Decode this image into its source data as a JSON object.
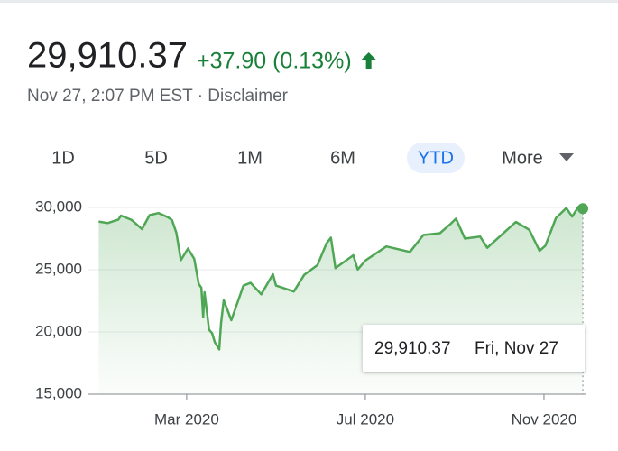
{
  "header": {
    "price": "29,910.37",
    "change": "+37.90 (0.13%)",
    "timestamp": "Nov 27, 2:07 PM EST",
    "separator": "·",
    "disclaimer": "Disclaimer"
  },
  "tabs": {
    "items": [
      "1D",
      "5D",
      "1M",
      "6M",
      "YTD",
      "More"
    ],
    "selected": 4
  },
  "tooltip": {
    "value": "29,910.37",
    "date": "Fri, Nov 27"
  },
  "chart_data": {
    "type": "area",
    "color": "#4fa756",
    "x": [
      0.03,
      0.23,
      0.47,
      0.53,
      0.77,
      1.0,
      1.17,
      1.37,
      1.57,
      1.67,
      1.77,
      1.87,
      2.03,
      2.17,
      2.27,
      2.33,
      2.37,
      2.4,
      2.5,
      2.57,
      2.63,
      2.73,
      2.77,
      2.83,
      3.0,
      3.17,
      3.27,
      3.43,
      3.67,
      3.93,
      4.0,
      4.4,
      4.63,
      4.93,
      5.13,
      5.23,
      5.33,
      5.73,
      5.83,
      6.0,
      6.47,
      6.73,
      7.0,
      7.3,
      7.67,
      7.9,
      8.03,
      8.23,
      8.57,
      8.73,
      9.37,
      9.67,
      9.9,
      10.03,
      10.27,
      10.5,
      10.63,
      10.77,
      10.8,
      10.87
    ],
    "values": [
      28869,
      28745,
      29030,
      29348,
      28990,
      28256,
      29379,
      29551,
      29232,
      28992,
      27961,
      25766,
      26703,
      25865,
      23851,
      23553,
      21200,
      23185,
      20189,
      19899,
      19174,
      18592,
      20705,
      22552,
      20943,
      22680,
      23719,
      23949,
      23019,
      24634,
      23724,
      23248,
      24576,
      25383,
      27111,
      27572,
      25128,
      26156,
      25016,
      25734,
      26870,
      26652,
      26428,
      27791,
      27930,
      28654,
      29100,
      27500,
      27657,
      26763,
      28837,
      28211,
      26519,
      26925,
      29158,
      29950,
      29263,
      30046,
      29872,
      29910
    ],
    "xlim": [
      -0.22,
      10.95
    ],
    "xticks": [
      {
        "value": 2,
        "label": "Mar 2020"
      },
      {
        "value": 6,
        "label": "Jul 2020"
      },
      {
        "value": 10,
        "label": "Nov 2020"
      }
    ],
    "ylim": [
      15000,
      31230
    ],
    "yticks": [
      {
        "value": 15000,
        "label": "15,000"
      },
      {
        "value": 20000,
        "label": "20,000"
      },
      {
        "value": 25000,
        "label": "25,000"
      },
      {
        "value": 30000,
        "label": "30,000"
      }
    ],
    "grid": true
  }
}
